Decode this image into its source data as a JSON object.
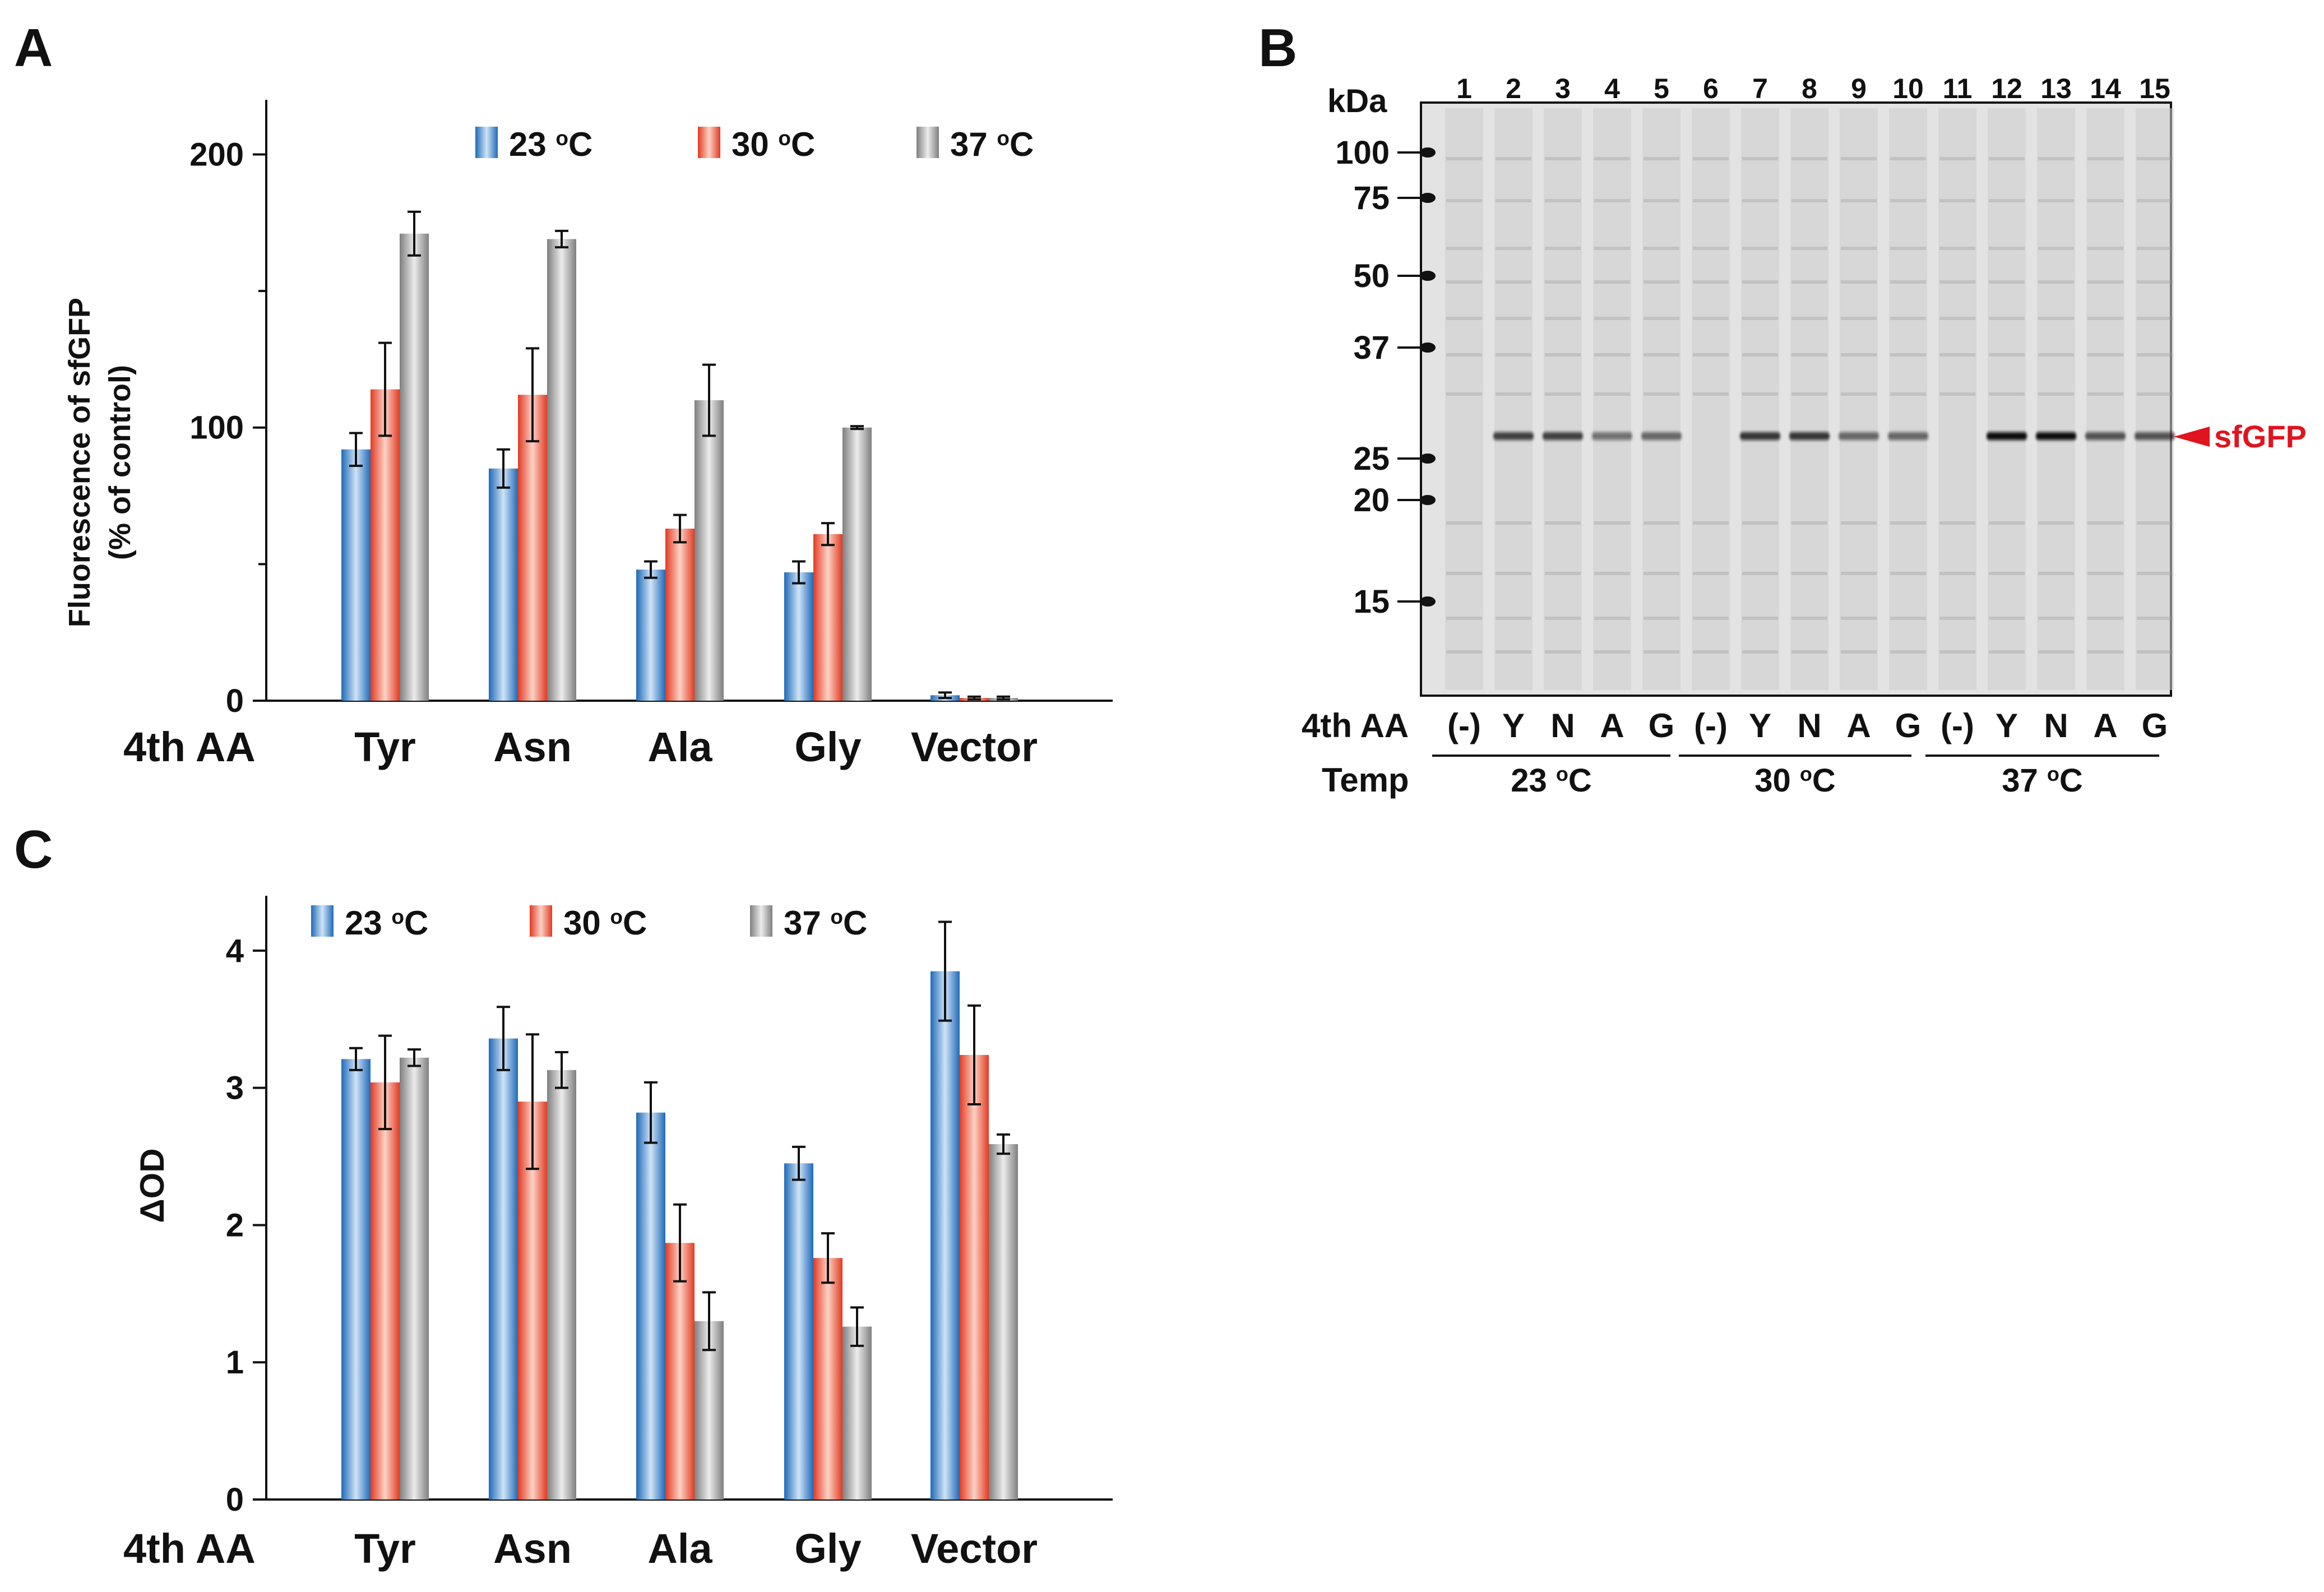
{
  "panels": {
    "a": "A",
    "b": "B",
    "c": "C"
  },
  "colors": {
    "series_23": "#2b78c2",
    "series_30": "#e8442a",
    "series_37": "#8c8c8c",
    "sfgfp_label": "#e0141e",
    "axis": "#111111"
  },
  "chart_data": [
    {
      "id": "A",
      "type": "bar",
      "title": "",
      "xlabel": "4th AA",
      "ylabel": "Fluorescence of sfGFP",
      "ylabel_line2": "(% of control)",
      "categories": [
        "Tyr",
        "Asn",
        "Ala",
        "Gly",
        "Vector"
      ],
      "ylim": [
        0,
        220
      ],
      "yticks": [
        0,
        100,
        200
      ],
      "grid": false,
      "legend": "top",
      "series": [
        {
          "name": "23 °C",
          "label_num": "23 ",
          "label_deg": "o",
          "label_unit": "C",
          "values": [
            92,
            85,
            48,
            47,
            2
          ],
          "errors": [
            6,
            7,
            3,
            4,
            1
          ]
        },
        {
          "name": "30 °C",
          "label_num": "30 ",
          "label_deg": "o",
          "label_unit": "C",
          "values": [
            114,
            112,
            63,
            61,
            1
          ],
          "errors": [
            17,
            17,
            5,
            4,
            0.5
          ]
        },
        {
          "name": "37 °C",
          "label_num": "37 ",
          "label_deg": "o",
          "label_unit": "C",
          "values": [
            171,
            169,
            110,
            100,
            1
          ],
          "errors": [
            8,
            3,
            13,
            0.5,
            0.5
          ]
        }
      ]
    },
    {
      "id": "C",
      "type": "bar",
      "title": "",
      "xlabel": "4th AA",
      "ylabel": "ΔOD",
      "categories": [
        "Tyr",
        "Asn",
        "Ala",
        "Gly",
        "Vector"
      ],
      "ylim": [
        0,
        4.4
      ],
      "yticks": [
        0,
        1,
        2,
        3,
        4
      ],
      "grid": false,
      "legend": "top",
      "series": [
        {
          "name": "23 °C",
          "label_num": "23 ",
          "label_deg": "o",
          "label_unit": "C",
          "values": [
            3.21,
            3.36,
            2.82,
            2.45,
            3.85
          ],
          "errors": [
            0.08,
            0.23,
            0.22,
            0.12,
            0.36
          ]
        },
        {
          "name": "30 °C",
          "label_num": "30 ",
          "label_deg": "o",
          "label_unit": "C",
          "values": [
            3.04,
            2.9,
            1.87,
            1.76,
            3.24
          ],
          "errors": [
            0.34,
            0.49,
            0.28,
            0.18,
            0.36
          ]
        },
        {
          "name": "37 °C",
          "label_num": "37 ",
          "label_deg": "o",
          "label_unit": "C",
          "values": [
            3.22,
            3.13,
            1.3,
            1.26,
            2.59
          ],
          "errors": [
            0.06,
            0.13,
            0.21,
            0.14,
            0.07
          ]
        }
      ]
    }
  ],
  "gel": {
    "kda_label": "kDa",
    "markers": [
      {
        "label": "100",
        "kda": 100
      },
      {
        "label": "75",
        "kda": 75
      },
      {
        "label": "50",
        "kda": 50
      },
      {
        "label": "37",
        "kda": 37
      },
      {
        "label": "25",
        "kda": 25
      },
      {
        "label": "20",
        "kda": 20
      },
      {
        "label": "15",
        "kda": 15
      }
    ],
    "lanes": [
      "1",
      "2",
      "3",
      "4",
      "5",
      "6",
      "7",
      "8",
      "9",
      "10",
      "11",
      "12",
      "13",
      "14",
      "15"
    ],
    "band_intensity": [
      0,
      0.75,
      0.75,
      0.5,
      0.55,
      0,
      0.8,
      0.8,
      0.55,
      0.55,
      0,
      1,
      1,
      0.65,
      0.65
    ],
    "aa_row_label": "4th AA",
    "aa_labels": [
      "(-)",
      "Y",
      "N",
      "A",
      "G",
      "(-)",
      "Y",
      "N",
      "A",
      "G",
      "(-)",
      "Y",
      "N",
      "A",
      "G"
    ],
    "temp_row_label": "Temp",
    "temp_groups": [
      {
        "num": "23 ",
        "deg": "o",
        "unit": "C"
      },
      {
        "num": "30 ",
        "deg": "o",
        "unit": "C"
      },
      {
        "num": "37 ",
        "deg": "o",
        "unit": "C"
      }
    ],
    "sfgfp_label": "sfGFP"
  }
}
